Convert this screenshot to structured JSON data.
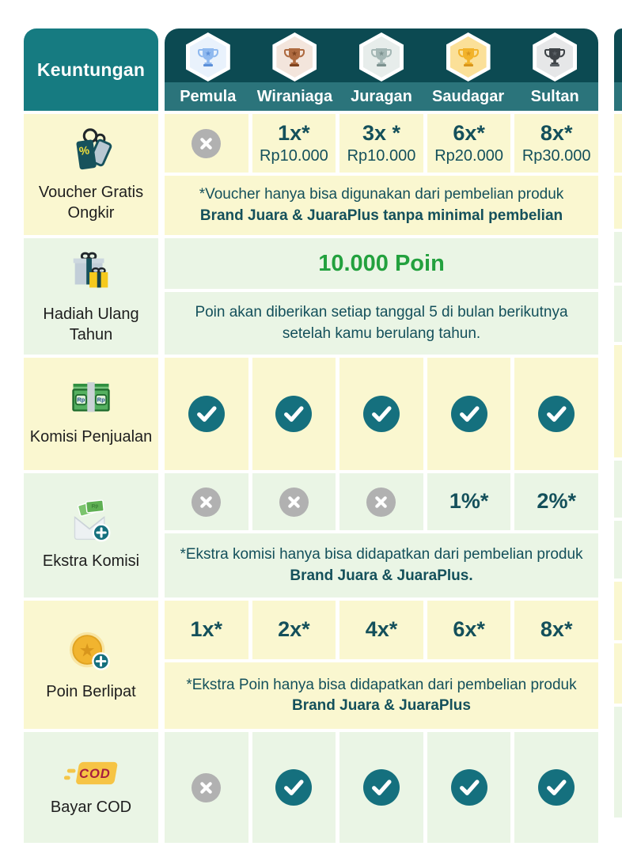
{
  "header": {
    "corner_label": "Keuntungan",
    "tiers": [
      {
        "label": "Pemula",
        "badge_bg": "#E9F2FC",
        "trophy": "#8FB9EF",
        "trophy_star": "#5B8FD8"
      },
      {
        "label": "Wiraniaga",
        "badge_bg": "#F3E5DC",
        "trophy": "#AE6A40",
        "trophy_star": "#7E431F"
      },
      {
        "label": "Juragan",
        "badge_bg": "#E7EDEB",
        "trophy": "#A4B7B5",
        "trophy_star": "#7C918F"
      },
      {
        "label": "Saudagar",
        "badge_bg": "#FBE098",
        "trophy": "#F2B32B",
        "trophy_star": "#D8951B"
      },
      {
        "label": "Sultan",
        "badge_bg": "#E6E7E8",
        "trophy": "#3F4448",
        "trophy_star": "#5A6065"
      }
    ]
  },
  "rows": [
    {
      "id": "voucher-gratis-ongkir",
      "label": "Voucher Gratis Ongkir",
      "icon": "voucher-tags-icon",
      "tone": "yellow",
      "values": [
        {
          "type": "x"
        },
        {
          "type": "text",
          "main": "1x*",
          "sub": "Rp10.000"
        },
        {
          "type": "text",
          "main": "3x *",
          "sub": "Rp10.000"
        },
        {
          "type": "text",
          "main": "6x*",
          "sub": "Rp20.000"
        },
        {
          "type": "text",
          "main": "8x*",
          "sub": "Rp30.000"
        }
      ],
      "note": {
        "normal": "*Voucher hanya bisa digunakan dari pembelian produk",
        "bold": "Brand Juara & JuaraPlus tanpa minimal pembelian"
      }
    },
    {
      "id": "hadiah-ulang-tahun",
      "label": "Hadiah Ulang Tahun",
      "icon": "gift-icon",
      "tone": "green",
      "highlight": "10.000 Poin",
      "note": {
        "normal": "Poin akan diberikan setiap tanggal 5 di bulan berikutnya setelah kamu berulang tahun.",
        "bold": ""
      }
    },
    {
      "id": "komisi-penjualan",
      "label": "Komisi Penjualan",
      "icon": "money-icon",
      "tone": "yellow",
      "values": [
        {
          "type": "check"
        },
        {
          "type": "check"
        },
        {
          "type": "check"
        },
        {
          "type": "check"
        },
        {
          "type": "check"
        }
      ]
    },
    {
      "id": "ekstra-komisi",
      "label": "Ekstra Komisi",
      "icon": "envelope-money-icon",
      "tone": "green",
      "values": [
        {
          "type": "x"
        },
        {
          "type": "x"
        },
        {
          "type": "x"
        },
        {
          "type": "text",
          "main": "1%*"
        },
        {
          "type": "text",
          "main": "2%*"
        }
      ],
      "note": {
        "normal": "*Ekstra komisi hanya bisa didapatkan dari pembelian produk",
        "bold": "Brand Juara & JuaraPlus."
      }
    },
    {
      "id": "poin-berlipat",
      "label": "Poin Berlipat",
      "icon": "coin-plus-icon",
      "tone": "yellow",
      "values": [
        {
          "type": "text",
          "main": "1x*"
        },
        {
          "type": "text",
          "main": "2x*"
        },
        {
          "type": "text",
          "main": "4x*"
        },
        {
          "type": "text",
          "main": "6x*"
        },
        {
          "type": "text",
          "main": "8x*"
        }
      ],
      "note": {
        "normal": "*Ekstra Poin hanya bisa didapatkan dari pembelian produk",
        "bold": "Brand Juara & JuaraPlus"
      }
    },
    {
      "id": "bayar-cod",
      "label": "Bayar COD",
      "icon": "cod-icon",
      "tone": "green",
      "values": [
        {
          "type": "x"
        },
        {
          "type": "check"
        },
        {
          "type": "check"
        },
        {
          "type": "check"
        },
        {
          "type": "check"
        }
      ]
    }
  ],
  "colors": {
    "header_dark": "#0C4A52",
    "header_band": "#2B747B",
    "corner_bg": "#167B81",
    "yellow_cell": "#FAF7D0",
    "green_cell": "#EAF5E5",
    "text_teal": "#14505B",
    "accent_green": "#23A13E",
    "check_teal": "#15707E",
    "x_gray": "#B1B1B1"
  }
}
